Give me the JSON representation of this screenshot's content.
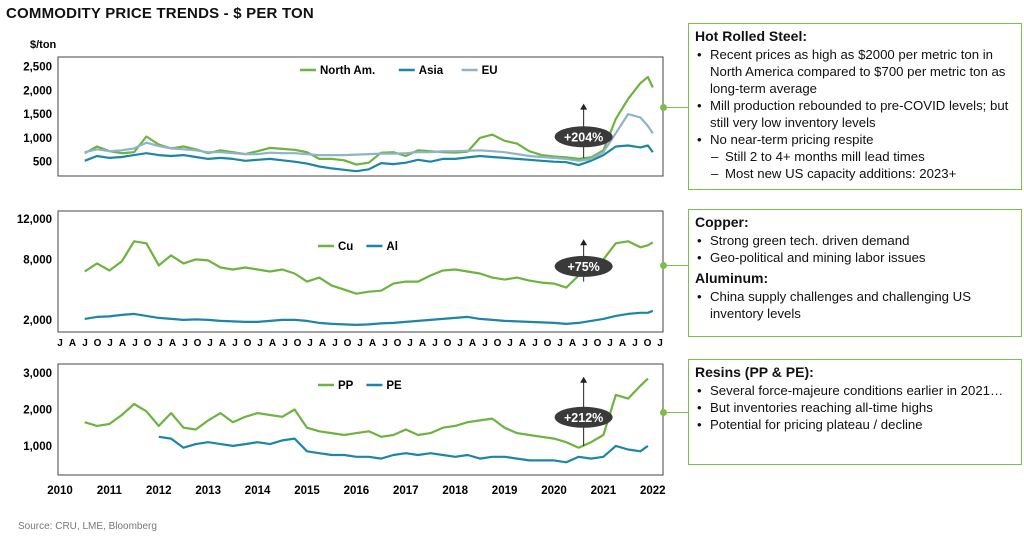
{
  "page": {
    "title": "COMMODITY PRICE TRENDS - $ PER TON",
    "source": "Source: CRU, LME, Bloomberg",
    "colors": {
      "green": "#6db33f",
      "teal": "#1c86a6",
      "gray_blue": "#8fb3c9",
      "box_border": "#7cbd4c"
    }
  },
  "panels": [
    {
      "heading": "Hot Rolled Steel:",
      "bullets": [
        {
          "text": "Recent prices as high as $2000 per metric ton in North America compared to $700 per metric ton as long-term average",
          "level": 1
        },
        {
          "text": "Mill production rebounded to pre-COVID levels; but still very low inventory levels",
          "level": 1
        },
        {
          "text": "No near-term pricing respite",
          "level": 1
        },
        {
          "text": "Still 2 to 4+ months mill lead times",
          "level": 2
        },
        {
          "text": "Most new US capacity additions: 2023+",
          "level": 2
        }
      ]
    },
    {
      "heading": "Copper:",
      "bullets": [
        {
          "text": "Strong green tech. driven demand",
          "level": 1
        },
        {
          "text": "Geo-political and mining labor issues",
          "level": 1
        }
      ],
      "heading2": "Aluminum:",
      "bullets2": [
        {
          "text": "China supply challenges and challenging US inventory levels",
          "level": 1
        }
      ]
    },
    {
      "heading": "Resins (PP & PE):",
      "bullets": [
        {
          "text": "Several force-majeure conditions earlier in 2021…",
          "level": 1
        },
        {
          "text": "But inventories reaching all-time highs",
          "level": 1
        },
        {
          "text": "Potential for pricing plateau / decline",
          "level": 1
        }
      ]
    }
  ],
  "chart_data": [
    {
      "type": "line",
      "ylabel": "$/ton",
      "ylim": [
        200,
        2700
      ],
      "yticks": [
        "2,500",
        "2,000",
        "1,500",
        "1,000",
        "500"
      ],
      "ytick_values": [
        2500,
        2000,
        1500,
        1000,
        500
      ],
      "xlim": [
        2010.5,
        2022.0
      ],
      "legend_placement": "top-center",
      "annotation": {
        "text": "+204%",
        "arrow_x": 2020.6,
        "arrow_from": 580,
        "arrow_to": 1720
      },
      "series": [
        {
          "name": "North Am.",
          "color": "#6db33f",
          "x": [
            2010.5,
            2010.75,
            2011.0,
            2011.25,
            2011.5,
            2011.75,
            2012.0,
            2012.25,
            2012.5,
            2012.75,
            2013.0,
            2013.25,
            2013.5,
            2013.75,
            2014.0,
            2014.25,
            2014.5,
            2014.75,
            2015.0,
            2015.25,
            2015.5,
            2015.75,
            2016.0,
            2016.25,
            2016.5,
            2016.75,
            2017.0,
            2017.25,
            2017.5,
            2017.75,
            2018.0,
            2018.25,
            2018.5,
            2018.75,
            2019.0,
            2019.25,
            2019.5,
            2019.75,
            2020.0,
            2020.25,
            2020.5,
            2020.75,
            2021.0,
            2021.25,
            2021.5,
            2021.75,
            2021.9,
            2022.0
          ],
          "y": [
            680,
            820,
            720,
            680,
            700,
            1030,
            860,
            780,
            820,
            760,
            680,
            740,
            700,
            660,
            720,
            790,
            770,
            750,
            700,
            560,
            560,
            530,
            440,
            480,
            690,
            700,
            620,
            740,
            720,
            700,
            690,
            710,
            1000,
            1070,
            940,
            880,
            720,
            640,
            610,
            590,
            560,
            590,
            740,
            1400,
            1820,
            2150,
            2280,
            2060
          ]
        },
        {
          "name": "Asia",
          "color": "#1c86a6",
          "x": [
            2010.5,
            2010.75,
            2011.0,
            2011.25,
            2011.5,
            2011.75,
            2012.0,
            2012.25,
            2012.5,
            2012.75,
            2013.0,
            2013.25,
            2013.5,
            2013.75,
            2014.0,
            2014.25,
            2014.5,
            2014.75,
            2015.0,
            2015.25,
            2015.5,
            2015.75,
            2016.0,
            2016.25,
            2016.5,
            2016.75,
            2017.0,
            2017.25,
            2017.5,
            2017.75,
            2018.0,
            2018.25,
            2018.5,
            2018.75,
            2019.0,
            2019.25,
            2019.5,
            2019.75,
            2020.0,
            2020.25,
            2020.5,
            2020.75,
            2021.0,
            2021.25,
            2021.5,
            2021.75,
            2021.9,
            2022.0
          ],
          "y": [
            520,
            620,
            580,
            600,
            640,
            680,
            640,
            620,
            640,
            600,
            560,
            580,
            560,
            520,
            540,
            560,
            530,
            500,
            460,
            400,
            360,
            330,
            300,
            340,
            470,
            450,
            480,
            540,
            500,
            560,
            560,
            590,
            620,
            600,
            580,
            560,
            540,
            520,
            500,
            490,
            430,
            520,
            640,
            820,
            840,
            800,
            840,
            700
          ]
        },
        {
          "name": "EU",
          "color": "#8fb3c9",
          "x": [
            2010.5,
            2010.75,
            2011.0,
            2011.25,
            2011.5,
            2011.75,
            2012.0,
            2012.25,
            2012.5,
            2012.75,
            2013.0,
            2013.25,
            2013.5,
            2013.75,
            2014.0,
            2014.25,
            2014.5,
            2014.75,
            2015.0,
            2015.25,
            2015.5,
            2015.75,
            2016.0,
            2016.25,
            2016.5,
            2016.75,
            2017.0,
            2017.25,
            2017.5,
            2017.75,
            2018.0,
            2018.25,
            2018.5,
            2018.75,
            2019.0,
            2019.25,
            2019.5,
            2019.75,
            2020.0,
            2020.25,
            2020.5,
            2020.75,
            2021.0,
            2021.25,
            2021.5,
            2021.75,
            2021.9,
            2022.0
          ],
          "y": [
            700,
            760,
            720,
            740,
            780,
            900,
            830,
            780,
            760,
            740,
            700,
            700,
            680,
            660,
            660,
            690,
            680,
            680,
            660,
            640,
            640,
            640,
            650,
            660,
            670,
            670,
            680,
            700,
            700,
            720,
            720,
            730,
            740,
            720,
            700,
            660,
            620,
            600,
            580,
            560,
            520,
            560,
            700,
            1100,
            1500,
            1430,
            1250,
            1100
          ]
        }
      ]
    },
    {
      "type": "line",
      "ylim": [
        800,
        12800
      ],
      "yticks": [
        "12,000",
        "8,000",
        "2,000"
      ],
      "ytick_values": [
        12000,
        8000,
        2000
      ],
      "xlim": [
        2010.5,
        2022.0
      ],
      "legend_placement": "top-center",
      "annotation": {
        "text": "+75%",
        "arrow_x": 2020.6,
        "arrow_from": 5800,
        "arrow_to": 10000
      },
      "x_month_labels": [
        "J",
        "A",
        "J",
        "O",
        "J",
        "A",
        "J",
        "O",
        "J",
        "A",
        "J",
        "O",
        "J",
        "A",
        "J",
        "O",
        "J",
        "A",
        "J",
        "O",
        "J",
        "A",
        "J",
        "O",
        "J",
        "A",
        "J",
        "O",
        "J",
        "A",
        "J",
        "O",
        "J",
        "A",
        "J",
        "O",
        "J",
        "A",
        "J",
        "O",
        "J",
        "A",
        "J",
        "O",
        "J",
        "A",
        "J",
        "O",
        "J"
      ],
      "series": [
        {
          "name": "Cu",
          "color": "#6db33f",
          "x": [
            2010.5,
            2010.75,
            2011.0,
            2011.25,
            2011.5,
            2011.75,
            2012.0,
            2012.25,
            2012.5,
            2012.75,
            2013.0,
            2013.25,
            2013.5,
            2013.75,
            2014.0,
            2014.25,
            2014.5,
            2014.75,
            2015.0,
            2015.25,
            2015.5,
            2015.75,
            2016.0,
            2016.25,
            2016.5,
            2016.75,
            2017.0,
            2017.25,
            2017.5,
            2017.75,
            2018.0,
            2018.25,
            2018.5,
            2018.75,
            2019.0,
            2019.25,
            2019.5,
            2019.75,
            2020.0,
            2020.25,
            2020.5,
            2020.75,
            2021.0,
            2021.25,
            2021.5,
            2021.75,
            2021.9,
            2022.0
          ],
          "y": [
            6800,
            7600,
            6900,
            7800,
            9800,
            9600,
            7400,
            8400,
            7600,
            8000,
            7900,
            7200,
            7000,
            7200,
            7000,
            6800,
            7000,
            6600,
            5800,
            6200,
            5400,
            5000,
            4600,
            4800,
            4900,
            5600,
            5800,
            5800,
            6400,
            6900,
            7000,
            6800,
            6600,
            6200,
            6000,
            6200,
            5900,
            5700,
            5600,
            5200,
            6400,
            6800,
            8000,
            9600,
            9800,
            9200,
            9400,
            9700
          ]
        },
        {
          "name": "Al",
          "color": "#1c86a6",
          "x": [
            2010.5,
            2010.75,
            2011.0,
            2011.25,
            2011.5,
            2011.75,
            2012.0,
            2012.25,
            2012.5,
            2012.75,
            2013.0,
            2013.25,
            2013.5,
            2013.75,
            2014.0,
            2014.25,
            2014.5,
            2014.75,
            2015.0,
            2015.25,
            2015.5,
            2015.75,
            2016.0,
            2016.25,
            2016.5,
            2016.75,
            2017.0,
            2017.25,
            2017.5,
            2017.75,
            2018.0,
            2018.25,
            2018.5,
            2018.75,
            2019.0,
            2019.25,
            2019.5,
            2019.75,
            2020.0,
            2020.25,
            2020.5,
            2020.75,
            2021.0,
            2021.25,
            2021.5,
            2021.75,
            2021.9,
            2022.0
          ],
          "y": [
            2100,
            2300,
            2350,
            2500,
            2600,
            2400,
            2200,
            2100,
            2000,
            2050,
            2000,
            1900,
            1850,
            1800,
            1800,
            1900,
            2000,
            2000,
            1900,
            1700,
            1600,
            1550,
            1500,
            1550,
            1650,
            1700,
            1800,
            1900,
            2000,
            2100,
            2200,
            2300,
            2100,
            2000,
            1900,
            1850,
            1800,
            1750,
            1700,
            1600,
            1700,
            1900,
            2100,
            2400,
            2600,
            2700,
            2700,
            2900
          ]
        }
      ]
    },
    {
      "type": "line",
      "ylim": [
        200,
        3250
      ],
      "yticks": [
        "3,000",
        "2,000",
        "1,000"
      ],
      "ytick_values": [
        3000,
        2000,
        1000
      ],
      "xlim": [
        2010.5,
        2022.0
      ],
      "xticks": [
        "2010",
        "2011",
        "2012",
        "2013",
        "2014",
        "2015",
        "2016",
        "2017",
        "2018",
        "2019",
        "2020",
        "2021",
        "2022"
      ],
      "xtick_values": [
        2010,
        2011,
        2012,
        2013,
        2014,
        2015,
        2016,
        2017,
        2018,
        2019,
        2020,
        2021,
        2022
      ],
      "legend_placement": "top-center",
      "annotation": {
        "text": "+212%",
        "arrow_x": 2020.6,
        "arrow_from": 1000,
        "arrow_to": 2900
      },
      "series": [
        {
          "name": "PP",
          "color": "#6db33f",
          "x": [
            2010.5,
            2010.75,
            2011.0,
            2011.25,
            2011.5,
            2011.75,
            2012.0,
            2012.25,
            2012.5,
            2012.75,
            2013.0,
            2013.25,
            2013.5,
            2013.75,
            2014.0,
            2014.25,
            2014.5,
            2014.75,
            2015.0,
            2015.25,
            2015.5,
            2015.75,
            2016.0,
            2016.25,
            2016.5,
            2016.75,
            2017.0,
            2017.25,
            2017.5,
            2017.75,
            2018.0,
            2018.25,
            2018.5,
            2018.75,
            2019.0,
            2019.25,
            2019.5,
            2019.75,
            2020.0,
            2020.25,
            2020.5,
            2020.75,
            2021.0,
            2021.25,
            2021.5,
            2021.75,
            2021.9
          ],
          "y": [
            1650,
            1550,
            1600,
            1850,
            2150,
            1950,
            1550,
            1900,
            1500,
            1450,
            1700,
            1900,
            1650,
            1800,
            1900,
            1850,
            1800,
            2000,
            1500,
            1400,
            1350,
            1300,
            1350,
            1400,
            1250,
            1300,
            1450,
            1300,
            1350,
            1500,
            1550,
            1650,
            1700,
            1750,
            1500,
            1350,
            1300,
            1250,
            1200,
            1100,
            950,
            1100,
            1300,
            2400,
            2300,
            2650,
            2850
          ]
        },
        {
          "name": "PE",
          "color": "#1c86a6",
          "x": [
            2012.0,
            2012.25,
            2012.5,
            2012.75,
            2013.0,
            2013.25,
            2013.5,
            2013.75,
            2014.0,
            2014.25,
            2014.5,
            2014.75,
            2015.0,
            2015.25,
            2015.5,
            2015.75,
            2016.0,
            2016.25,
            2016.5,
            2016.75,
            2017.0,
            2017.25,
            2017.5,
            2017.75,
            2018.0,
            2018.25,
            2018.5,
            2018.75,
            2019.0,
            2019.25,
            2019.5,
            2019.75,
            2020.0,
            2020.25,
            2020.5,
            2020.75,
            2021.0,
            2021.25,
            2021.5,
            2021.75,
            2021.9
          ],
          "y": [
            1250,
            1200,
            950,
            1050,
            1100,
            1050,
            1000,
            1050,
            1100,
            1050,
            1150,
            1200,
            850,
            800,
            750,
            750,
            700,
            700,
            650,
            750,
            800,
            750,
            800,
            750,
            700,
            750,
            650,
            700,
            700,
            650,
            600,
            600,
            600,
            550,
            700,
            650,
            700,
            1000,
            900,
            850,
            1000
          ]
        }
      ]
    }
  ]
}
